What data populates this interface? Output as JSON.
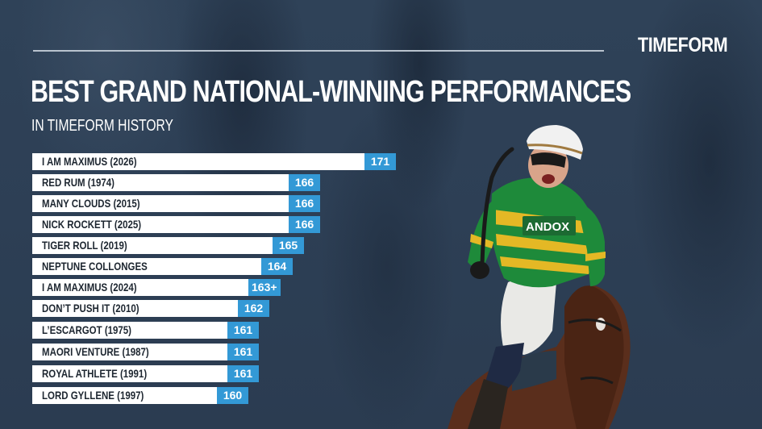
{
  "brand": {
    "logo_text": "TIMEFORM"
  },
  "header": {
    "title": "BEST GRAND NATIONAL-WINNING PERFORMANCES",
    "subtitle": "IN TIMEFORM HISTORY"
  },
  "colors": {
    "background": "#2d3f55",
    "bar": "#ffffff",
    "value_box": "#3399d6",
    "label_text": "#1d2630"
  },
  "photo": {
    "description": "jockey in green and gold silks with white helmet celebrating on a bay horse",
    "silks_text": "ANDOX"
  },
  "rows": [
    {
      "label": "I AM MAXIMUS (2026)",
      "value": "171"
    },
    {
      "label": "RED RUM (1974)",
      "value": "166"
    },
    {
      "label": "MANY CLOUDS (2015)",
      "value": "166"
    },
    {
      "label": "NICK ROCKETT (2025)",
      "value": "166"
    },
    {
      "label": "TIGER ROLL (2019)",
      "value": "165"
    },
    {
      "label": "NEPTUNE COLLONGES",
      "value": "164"
    },
    {
      "label": "I AM MAXIMUS (2024)",
      "value": "163+"
    },
    {
      "label": "DON’T PUSH IT (2010)",
      "value": "162"
    },
    {
      "label": "L’ESCARGOT (1975)",
      "value": "161"
    },
    {
      "label": "MAORI VENTURE (1987)",
      "value": "161"
    },
    {
      "label": "ROYAL ATHLETE (1991)",
      "value": "161"
    },
    {
      "label": "LORD GYLLENE (1997)",
      "value": "160"
    }
  ],
  "chart_data": {
    "type": "bar",
    "orientation": "horizontal",
    "title": "BEST GRAND NATIONAL-WINNING PERFORMANCES",
    "subtitle": "IN TIMEFORM HISTORY",
    "xlabel": "",
    "ylabel": "",
    "categories": [
      "I AM MAXIMUS (2026)",
      "RED RUM (1974)",
      "MANY CLOUDS (2015)",
      "NICK ROCKETT (2025)",
      "TIGER ROLL (2019)",
      "NEPTUNE COLLONGES",
      "I AM MAXIMUS (2024)",
      "DON’T PUSH IT (2010)",
      "L’ESCARGOT (1975)",
      "MAORI VENTURE (1987)",
      "ROYAL ATHLETE (1991)",
      "LORD GYLLENE (1997)"
    ],
    "values": [
      171,
      166,
      166,
      166,
      165,
      164,
      163,
      162,
      161,
      161,
      161,
      160
    ],
    "value_labels": [
      "171",
      "166",
      "166",
      "166",
      "165",
      "164",
      "163+",
      "162",
      "161",
      "161",
      "161",
      "160"
    ],
    "grid": false,
    "legend": "none"
  }
}
